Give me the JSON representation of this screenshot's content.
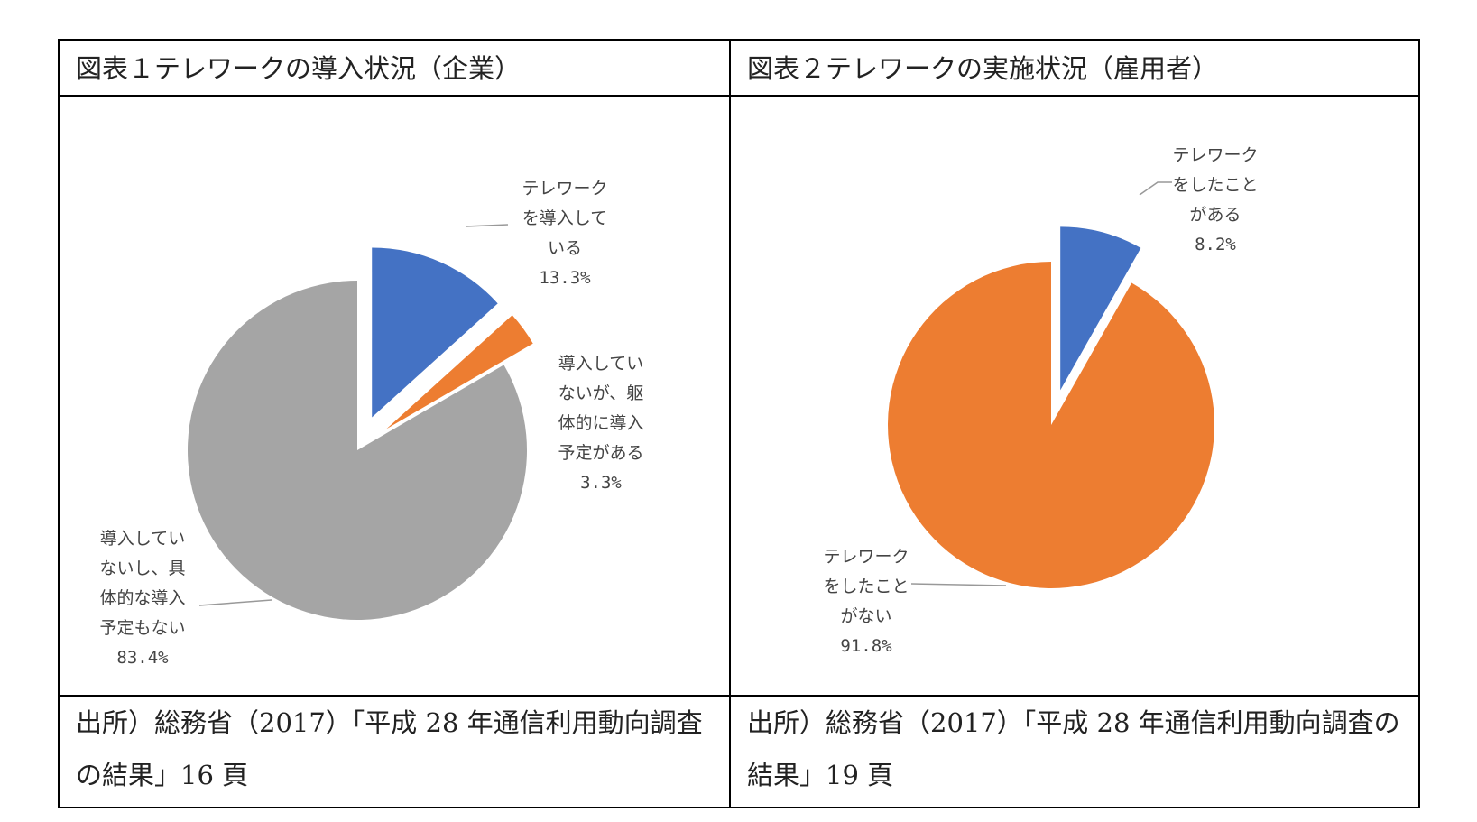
{
  "panels": [
    {
      "title": "図表１テレワークの導入状況（企業）",
      "source": "出所）総務省（2017）「平成 28 年通信利用動向調査の結果」16 頁"
    },
    {
      "title": "図表２テレワークの実施状況（雇用者）",
      "source": "出所）総務省（2017）「平成 28 年通信利用動向調査の結果」19 頁"
    }
  ],
  "chart_data": [
    {
      "type": "pie",
      "title": "図表１テレワークの導入状況（企業）",
      "slices": [
        {
          "label_lines": [
            "テレワーク",
            "を導入して",
            "いる"
          ],
          "percent_label": "13.3%",
          "value": 13.3,
          "color": "#4472C4",
          "exploded": true
        },
        {
          "label_lines": [
            "導入してい",
            "ないが、躯",
            "体的に導入",
            "予定がある"
          ],
          "percent_label": "3.3%",
          "value": 3.3,
          "color": "#ED7D31",
          "exploded": true
        },
        {
          "label_lines": [
            "導入してい",
            "ないし、具",
            "体的な導入",
            "予定もない"
          ],
          "percent_label": "83.4%",
          "value": 83.4,
          "color": "#A5A5A5",
          "exploded": false
        }
      ]
    },
    {
      "type": "pie",
      "title": "図表２テレワークの実施状況（雇用者）",
      "slices": [
        {
          "label_lines": [
            "テレワーク",
            "をしたこと",
            "がある"
          ],
          "percent_label": "8.2%",
          "value": 8.2,
          "color": "#4472C4",
          "exploded": true
        },
        {
          "label_lines": [
            "テレワーク",
            "をしたこと",
            "がない"
          ],
          "percent_label": "91.8%",
          "value": 91.8,
          "color": "#ED7D31",
          "exploded": false
        }
      ]
    }
  ]
}
